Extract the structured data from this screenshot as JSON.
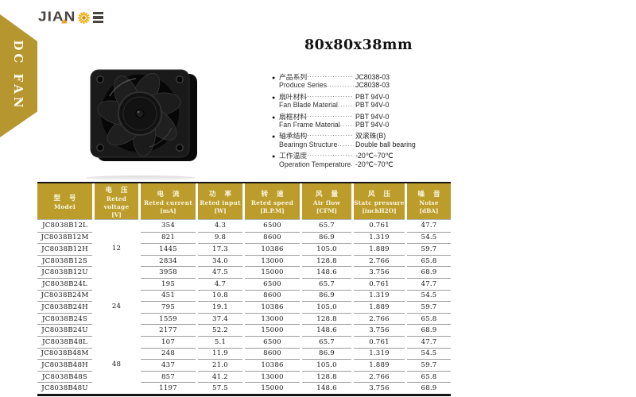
{
  "brand": {
    "logo_text": "JIAN",
    "stylized_letter": "E",
    "logo_gray": "#494440",
    "logo_orange": "#f2a30f"
  },
  "sidebar": {
    "label": "DC FAN",
    "gold": "#b6962f"
  },
  "page": {
    "title": "80x80x38mm"
  },
  "specs": [
    {
      "cn": "产品系列",
      "cn_value": "JC8038-03",
      "en": "Produce Series",
      "en_value": "JC8038-03"
    },
    {
      "cn": "扇叶材料",
      "cn_value": "PBT  94V-0",
      "en": "Fan Blade Material",
      "en_value": "PBT  94V-0"
    },
    {
      "cn": "扇框材料",
      "cn_value": "PBT  94V-0",
      "en": "Fan Frame Material",
      "en_value": "PBT  94V-0"
    },
    {
      "cn": "轴承结构",
      "cn_value": "双滚珠(B)",
      "en": "Bearingn Structure",
      "en_value": "Double ball bearing"
    },
    {
      "cn": "工作温度",
      "cn_value": "-20℃~70℃",
      "en": "Operation Temperature",
      "en_value": "-20℃~70℃"
    }
  ],
  "table": {
    "header_gold": "#bc9d2b",
    "headers": [
      {
        "cn": "型 号",
        "en": "Model",
        "unit": ""
      },
      {
        "cn": "电 压",
        "en": "Reted voltage",
        "unit": "[V]"
      },
      {
        "cn": "电 流",
        "en": "Reted current",
        "unit": "[mA]"
      },
      {
        "cn": "功 率",
        "en": "Reted input",
        "unit": "[W]"
      },
      {
        "cn": "转 速",
        "en": "Reted speed",
        "unit": "[R.P.M]"
      },
      {
        "cn": "风 量",
        "en": "Air flow",
        "unit": "[CFM]"
      },
      {
        "cn": "风 压",
        "en": "Statc pressure",
        "unit": "[inchH2O]"
      },
      {
        "cn": "噪 音",
        "en": "Noise",
        "unit": "[dBA]"
      }
    ],
    "groups": [
      {
        "voltage": "12",
        "rows": [
          {
            "model": "JC8038B12L",
            "current": "354",
            "input": "4.3",
            "speed": "6500",
            "air_flow": "65.7",
            "static_pressure": "0.761",
            "noise": "47.7"
          },
          {
            "model": "JC8038B12M",
            "current": "821",
            "input": "9.8",
            "speed": "8600",
            "air_flow": "86.9",
            "static_pressure": "1.319",
            "noise": "54.5"
          },
          {
            "model": "JC8038B12H",
            "current": "1445",
            "input": "17.3",
            "speed": "10386",
            "air_flow": "105.0",
            "static_pressure": "1.889",
            "noise": "59.7"
          },
          {
            "model": "JC8038B12S",
            "current": "2834",
            "input": "34.0",
            "speed": "13000",
            "air_flow": "128.8",
            "static_pressure": "2.766",
            "noise": "65.8"
          },
          {
            "model": "JC8038B12U",
            "current": "3958",
            "input": "47.5",
            "speed": "15000",
            "air_flow": "148.6",
            "static_pressure": "3.756",
            "noise": "68.9"
          }
        ]
      },
      {
        "voltage": "24",
        "rows": [
          {
            "model": "JC8038B24L",
            "current": "195",
            "input": "4.7",
            "speed": "6500",
            "air_flow": "65.7",
            "static_pressure": "0.761",
            "noise": "47.7"
          },
          {
            "model": "JC8038B24M",
            "current": "451",
            "input": "10.8",
            "speed": "8600",
            "air_flow": "86.9",
            "static_pressure": "1.319",
            "noise": "54.5"
          },
          {
            "model": "JC8038B24H",
            "current": "795",
            "input": "19.1",
            "speed": "10386",
            "air_flow": "105.0",
            "static_pressure": "1.889",
            "noise": "59.7"
          },
          {
            "model": "JC8038B24S",
            "current": "1559",
            "input": "37.4",
            "speed": "13000",
            "air_flow": "128.8",
            "static_pressure": "2.766",
            "noise": "65.8"
          },
          {
            "model": "JC8038B24U",
            "current": "2177",
            "input": "52.2",
            "speed": "15000",
            "air_flow": "148.6",
            "static_pressure": "3.756",
            "noise": "68.9"
          }
        ]
      },
      {
        "voltage": "48",
        "rows": [
          {
            "model": "JC8038B48L",
            "current": "107",
            "input": "5.1",
            "speed": "6500",
            "air_flow": "65.7",
            "static_pressure": "0.761",
            "noise": "47.7"
          },
          {
            "model": "JC8038B48M",
            "current": "248",
            "input": "11.9",
            "speed": "8600",
            "air_flow": "86.9",
            "static_pressure": "1.319",
            "noise": "54.5"
          },
          {
            "model": "JC8038B48H",
            "current": "437",
            "input": "21.0",
            "speed": "10386",
            "air_flow": "105.0",
            "static_pressure": "1.889",
            "noise": "59.7"
          },
          {
            "model": "JC8038B48S",
            "current": "857",
            "input": "41.2",
            "speed": "13000",
            "air_flow": "128.8",
            "static_pressure": "2.766",
            "noise": "65.8"
          },
          {
            "model": "JC8038B48U",
            "current": "1197",
            "input": "57.5",
            "speed": "15000",
            "air_flow": "148.6",
            "static_pressure": "3.756",
            "noise": "68.9"
          }
        ]
      }
    ]
  }
}
